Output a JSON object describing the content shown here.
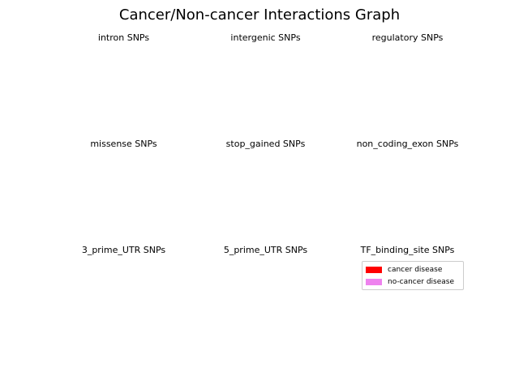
{
  "chart_data": {
    "type": "pie",
    "title": "Cancer/Non-cancer Interactions Graph",
    "panels": [
      {
        "title": "intron SNPs",
        "values": []
      },
      {
        "title": "intergenic SNPs",
        "values": []
      },
      {
        "title": "regulatory SNPs",
        "values": []
      },
      {
        "title": "missense SNPs",
        "values": []
      },
      {
        "title": "stop_gained SNPs",
        "values": []
      },
      {
        "title": "non_coding_exon SNPs",
        "values": []
      },
      {
        "title": "3_prime_UTR SNPs",
        "values": []
      },
      {
        "title": "5_prime_UTR SNPs",
        "values": []
      },
      {
        "title": "TF_binding_site SNPs",
        "values": []
      }
    ],
    "legend": {
      "placement": "inside-last-panel",
      "entries": [
        {
          "label": "cancer disease",
          "color": "#ff0000"
        },
        {
          "label": "no-cancer disease",
          "color": "#ee82ee"
        }
      ]
    }
  }
}
